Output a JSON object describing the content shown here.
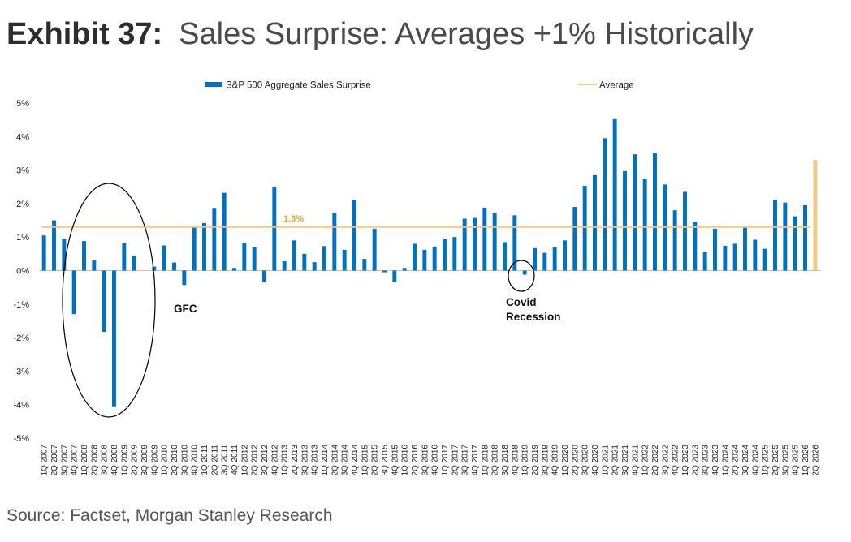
{
  "title": {
    "label": "Exhibit 37:",
    "text": "Sales Surprise: Averages +1% Historically"
  },
  "source": "Source: Factset, Morgan Stanley Research",
  "colors": {
    "bar": "#0070c0",
    "forecast": "#f0c987",
    "average": "#f0c987",
    "average_label": "#e8a92a",
    "axis": "#bfbfbf"
  },
  "chart_data": {
    "type": "bar",
    "title": "Sales Surprise: Averages +1% Historically",
    "xlabel": "",
    "ylabel": "",
    "ylim": [
      -5,
      5
    ],
    "yticks": [
      "-5%",
      "-4%",
      "-3%",
      "-2%",
      "-1%",
      "0%",
      "1%",
      "2%",
      "3%",
      "4%",
      "5%"
    ],
    "grid": false,
    "legend_position": "top",
    "series": [
      {
        "name": "S&P 500 Aggregate Sales Surprise",
        "type": "bar"
      },
      {
        "name": "Average",
        "type": "line",
        "value": 1.3,
        "label": "1.3%"
      }
    ],
    "categories": [
      "1Q 2007",
      "2Q 2007",
      "3Q 2007",
      "4Q 2007",
      "1Q 2008",
      "2Q 2008",
      "3Q 2008",
      "4Q 2008",
      "1Q 2009",
      "2Q 2009",
      "3Q 2009",
      "4Q 2009",
      "1Q 2010",
      "2Q 2010",
      "3Q 2010",
      "4Q 2010",
      "1Q 2011",
      "2Q 2011",
      "3Q 2011",
      "4Q 2011",
      "1Q 2012",
      "2Q 2012",
      "3Q 2012",
      "4Q 2012",
      "1Q 2013",
      "2Q 2013",
      "3Q 2013",
      "4Q 2013",
      "1Q 2014",
      "2Q 2014",
      "3Q 2014",
      "4Q 2014",
      "1Q 2015",
      "2Q 2015",
      "3Q 2015",
      "4Q 2015",
      "1Q 2016",
      "2Q 2016",
      "3Q 2016",
      "4Q 2016",
      "1Q 2017",
      "2Q 2017",
      "3Q 2017",
      "4Q 2017",
      "1Q 2018",
      "2Q 2018",
      "3Q 2018",
      "4Q 2018",
      "1Q 2019",
      "2Q 2019",
      "3Q 2019",
      "4Q 2019",
      "1Q 2020",
      "2Q 2020",
      "3Q 2020",
      "4Q 2020",
      "1Q 2021",
      "2Q 2021",
      "3Q 2021",
      "4Q 2021",
      "1Q 2022",
      "2Q 2022",
      "3Q 2022",
      "4Q 2022",
      "1Q 2023",
      "2Q 2023",
      "3Q 2023",
      "4Q 2023",
      "1Q 2024",
      "2Q 2024",
      "3Q 2024",
      "4Q 2024",
      "1Q 2025",
      "2Q 2025",
      "3Q 2025",
      "4Q 2025",
      "1Q 2026",
      "2Q 2026"
    ],
    "values": [
      1.05,
      1.5,
      0.95,
      -1.3,
      0.88,
      0.3,
      -1.83,
      -4.05,
      0.82,
      0.45,
      0.0,
      0.12,
      0.75,
      0.24,
      -0.43,
      1.32,
      1.42,
      1.87,
      2.32,
      0.08,
      0.82,
      0.7,
      -0.35,
      2.5,
      0.28,
      0.9,
      0.5,
      0.25,
      0.73,
      1.73,
      0.62,
      2.12,
      0.35,
      1.25,
      -0.05,
      -0.35,
      0.08,
      0.8,
      0.62,
      0.72,
      0.95,
      1.0,
      1.55,
      1.57,
      1.88,
      1.72,
      0.85,
      1.65,
      -0.12,
      0.67,
      0.53,
      0.7,
      0.9,
      1.9,
      2.53,
      2.85,
      3.95,
      4.52,
      2.97,
      3.47,
      2.75,
      3.5,
      2.57,
      1.8,
      2.35,
      1.45,
      0.55,
      1.25,
      0.74,
      0.8,
      1.28,
      0.92,
      0.65,
      2.12,
      2.03,
      1.62,
      1.95,
      3.3
    ],
    "highlight_last": true,
    "annotations": [
      {
        "text": "GFC",
        "near_category": "4Q 2009"
      },
      {
        "text": "Covid",
        "text2": "Recession",
        "near_category": "4Q 2018"
      }
    ]
  }
}
